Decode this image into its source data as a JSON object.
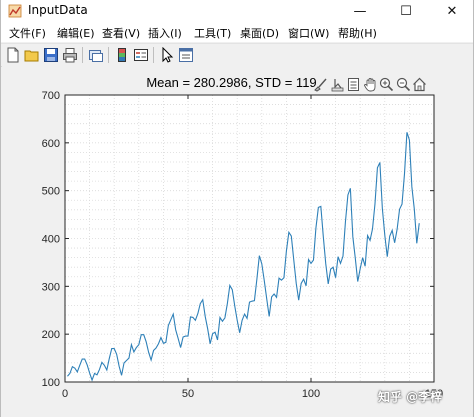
{
  "window": {
    "title": "InputData",
    "buttons": {
      "minimize": "—",
      "maximize": "☐",
      "close": "✕"
    }
  },
  "menubar": {
    "items": [
      "文件(F)",
      "编辑(E)",
      "查看(V)",
      "插入(I)",
      "工具(T)",
      "桌面(D)",
      "窗口(W)",
      "帮助(H)"
    ]
  },
  "toolbar": {
    "icons": [
      "new-figure-icon",
      "open-file-icon",
      "save-icon",
      "print-icon",
      "link-plot-icon",
      "colorbar-icon",
      "legend-icon",
      "pointer-icon",
      "property-editor-icon"
    ]
  },
  "axes_toolbar": {
    "icons": [
      "brush-icon",
      "data-tips-icon",
      "rotate-icon",
      "pan-icon",
      "zoom-in-icon",
      "zoom-out-icon",
      "home-icon"
    ]
  },
  "watermark": "知乎 @李梓",
  "colors": {
    "line": "#2e80b8",
    "grid": "#d9d9d9",
    "axes_bg": "#ffffff",
    "figure_bg": "#f0f0f0"
  },
  "chart_data": {
    "type": "line",
    "title": "Mean = 280.2986, STD = 119",
    "xlabel": "",
    "ylabel": "",
    "xlim": [
      0,
      150
    ],
    "ylim": [
      100,
      700
    ],
    "xticks": [
      0,
      50,
      100,
      150
    ],
    "yticks": [
      100,
      200,
      300,
      400,
      500,
      600,
      700
    ],
    "grid": "minor-dotted",
    "series": [
      {
        "values": [
          112,
          118,
          132,
          129,
          121,
          135,
          148,
          148,
          136,
          119,
          104,
          118,
          115,
          126,
          141,
          135,
          125,
          149,
          170,
          170,
          158,
          133,
          114,
          140,
          145,
          150,
          178,
          163,
          172,
          178,
          199,
          199,
          184,
          162,
          146,
          166,
          171,
          180,
          193,
          181,
          183,
          218,
          230,
          242,
          209,
          191,
          172,
          194,
          196,
          196,
          236,
          235,
          229,
          243,
          264,
          272,
          237,
          211,
          180,
          201,
          204,
          188,
          235,
          227,
          234,
          264,
          302,
          293,
          259,
          229,
          203,
          229,
          242,
          233,
          267,
          269,
          270,
          315,
          364,
          347,
          312,
          274,
          237,
          278,
          284,
          277,
          317,
          313,
          318,
          374,
          413,
          405,
          355,
          306,
          271,
          306,
          315,
          301,
          356,
          348,
          355,
          422,
          465,
          467,
          404,
          347,
          305,
          336,
          340,
          318,
          362,
          348,
          363,
          435,
          491,
          505,
          404,
          359,
          310,
          337,
          360,
          342,
          406,
          396,
          420,
          472,
          548,
          559,
          463,
          407,
          362,
          405,
          417,
          391,
          419,
          461,
          472,
          535,
          622,
          606,
          508,
          461,
          390,
          432
        ]
      }
    ]
  }
}
